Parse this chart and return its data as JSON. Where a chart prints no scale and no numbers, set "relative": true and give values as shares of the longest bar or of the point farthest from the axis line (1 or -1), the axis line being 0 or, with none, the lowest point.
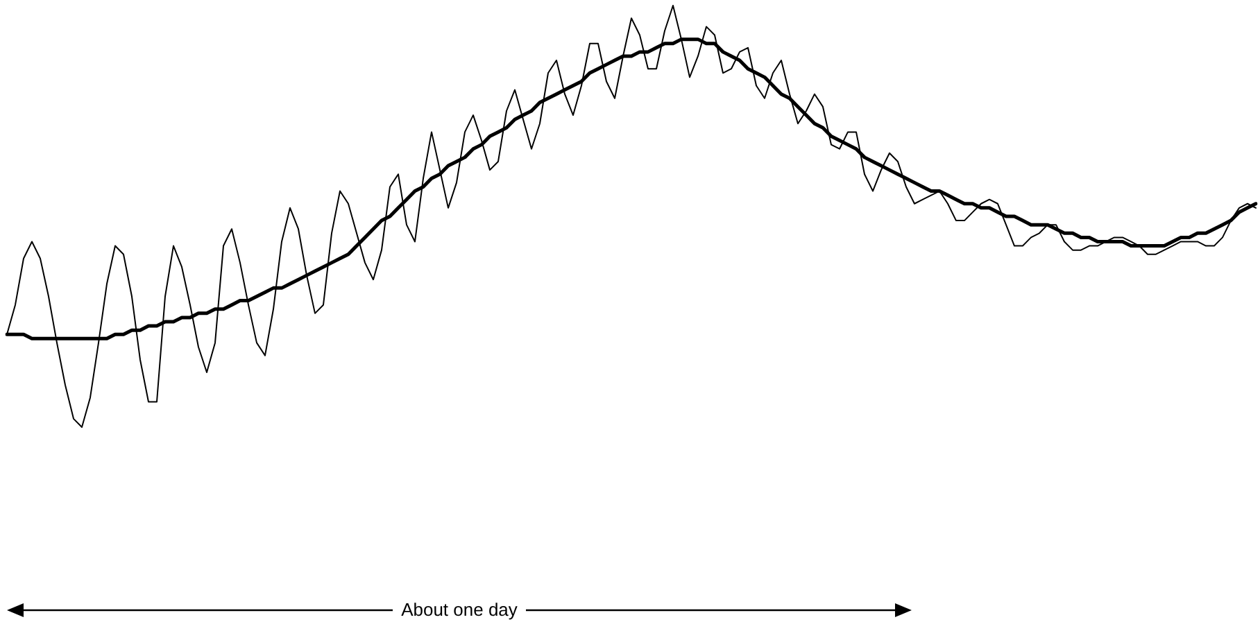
{
  "chart_data": {
    "type": "line",
    "relative": true,
    "marker": "none",
    "grid": false,
    "legend": false,
    "categories": [
      null,
      null,
      null,
      null,
      null,
      null,
      null,
      null,
      null,
      null,
      null,
      null,
      null,
      null,
      null,
      null,
      null,
      null,
      null,
      null,
      null,
      null,
      null,
      null,
      null,
      null,
      null,
      null,
      null,
      null,
      null,
      null,
      null,
      null,
      null,
      null,
      null,
      null,
      null,
      null,
      null,
      null,
      null,
      null,
      null,
      null,
      null,
      null,
      null,
      null,
      null,
      null,
      null,
      null,
      null,
      null,
      null,
      null,
      null,
      null,
      null,
      null,
      null,
      null,
      null,
      null,
      null,
      null,
      null,
      null,
      null,
      null,
      null,
      null,
      null,
      null,
      null,
      null,
      null,
      null,
      null,
      null,
      null,
      null,
      null,
      null,
      null,
      null,
      null,
      null,
      null,
      null,
      null,
      null,
      null,
      null,
      null,
      null,
      null,
      null,
      null,
      null,
      null,
      null,
      null,
      null,
      null,
      null,
      null,
      null,
      null,
      null,
      null,
      null,
      null,
      null,
      null,
      null,
      null,
      null,
      null,
      null,
      null,
      null,
      null,
      null,
      null,
      null,
      null,
      null,
      null,
      null,
      null,
      null,
      null,
      null,
      null,
      null,
      null,
      null,
      null,
      null,
      null,
      null,
      null,
      null,
      null,
      null,
      null,
      null,
      null
    ],
    "series": [
      {
        "color": "#000000",
        "values": [
          0.22,
          0.29,
          0.4,
          0.44,
          0.4,
          0.31,
          0.2,
          0.1,
          0.02,
          0,
          0.07,
          0.2,
          0.34,
          0.43,
          0.41,
          0.31,
          0.16,
          0.06,
          0.06,
          0.31,
          0.43,
          0.38,
          0.29,
          0.19,
          0.13,
          0.2,
          0.43,
          0.47,
          0.39,
          0.29,
          0.2,
          0.17,
          0.28,
          0.44,
          0.52,
          0.47,
          0.36,
          0.27,
          0.29,
          0.46,
          0.56,
          0.53,
          0.46,
          0.39,
          0.35,
          0.42,
          0.57,
          0.6,
          0.48,
          0.44,
          0.59,
          0.7,
          0.61,
          0.52,
          0.58,
          0.7,
          0.74,
          0.68,
          0.61,
          0.63,
          0.75,
          0.8,
          0.73,
          0.66,
          0.72,
          0.84,
          0.87,
          0.79,
          0.74,
          0.81,
          0.91,
          0.91,
          0.82,
          0.78,
          0.88,
          0.97,
          0.93,
          0.85,
          0.85,
          0.94,
          1,
          0.92,
          0.83,
          0.88,
          0.95,
          0.93,
          0.84,
          0.85,
          0.89,
          0.9,
          0.81,
          0.78,
          0.84,
          0.87,
          0.79,
          0.72,
          0.75,
          0.79,
          0.76,
          0.67,
          0.66,
          0.7,
          0.7,
          0.6,
          0.56,
          0.61,
          0.65,
          0.63,
          0.57,
          0.53,
          0.54,
          0.55,
          0.56,
          0.53,
          0.49,
          0.49,
          0.51,
          0.53,
          0.54,
          0.53,
          0.48,
          0.43,
          0.43,
          0.45,
          0.46,
          0.48,
          0.48,
          0.44,
          0.42,
          0.42,
          0.43,
          0.43,
          0.44,
          0.45,
          0.45,
          0.44,
          0.43,
          0.41,
          0.41,
          0.42,
          0.43,
          0.44,
          0.44,
          0.44,
          0.43,
          0.43,
          0.45,
          0.49,
          0.52,
          0.53,
          0.52
        ]
      },
      {
        "color": "#000000",
        "values": [
          0.22,
          0.22,
          0.22,
          0.21,
          0.21,
          0.21,
          0.21,
          0.21,
          0.21,
          0.21,
          0.21,
          0.21,
          0.21,
          0.22,
          0.22,
          0.23,
          0.23,
          0.24,
          0.24,
          0.25,
          0.25,
          0.26,
          0.26,
          0.27,
          0.27,
          0.28,
          0.28,
          0.29,
          0.3,
          0.3,
          0.31,
          0.32,
          0.33,
          0.33,
          0.34,
          0.35,
          0.36,
          0.37,
          0.38,
          0.39,
          0.4,
          0.41,
          0.43,
          0.45,
          0.47,
          0.49,
          0.5,
          0.52,
          0.54,
          0.56,
          0.57,
          0.59,
          0.6,
          0.62,
          0.63,
          0.64,
          0.66,
          0.67,
          0.69,
          0.7,
          0.71,
          0.73,
          0.74,
          0.75,
          0.77,
          0.78,
          0.79,
          0.8,
          0.81,
          0.82,
          0.84,
          0.85,
          0.86,
          0.87,
          0.88,
          0.88,
          0.89,
          0.89,
          0.9,
          0.91,
          0.91,
          0.92,
          0.92,
          0.92,
          0.91,
          0.91,
          0.89,
          0.88,
          0.87,
          0.85,
          0.84,
          0.83,
          0.81,
          0.79,
          0.78,
          0.76,
          0.74,
          0.72,
          0.71,
          0.69,
          0.68,
          0.67,
          0.66,
          0.64,
          0.63,
          0.62,
          0.61,
          0.6,
          0.59,
          0.58,
          0.57,
          0.56,
          0.56,
          0.55,
          0.54,
          0.53,
          0.53,
          0.52,
          0.52,
          0.51,
          0.5,
          0.5,
          0.49,
          0.48,
          0.48,
          0.48,
          0.47,
          0.46,
          0.46,
          0.45,
          0.45,
          0.44,
          0.44,
          0.44,
          0.44,
          0.43,
          0.43,
          0.43,
          0.43,
          0.43,
          0.44,
          0.45,
          0.45,
          0.46,
          0.46,
          0.47,
          0.48,
          0.49,
          0.51,
          0.52,
          0.53
        ]
      }
    ],
    "annotations": [
      "About one day"
    ]
  }
}
